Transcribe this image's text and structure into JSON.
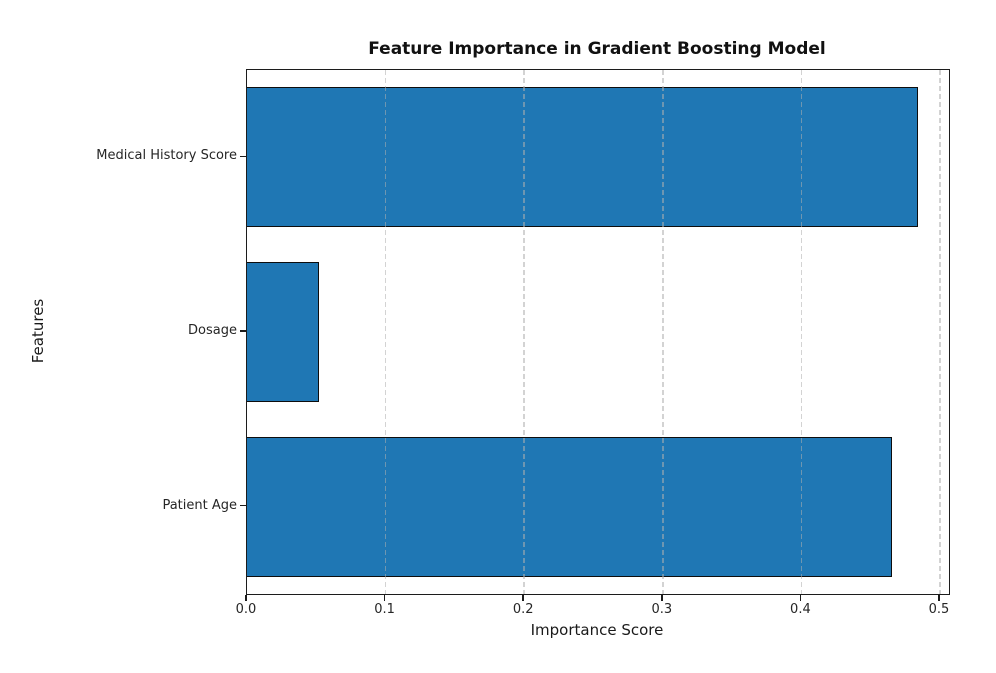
{
  "chart_data": {
    "type": "bar",
    "orientation": "horizontal",
    "title": "Feature Importance in Gradient Boosting Model",
    "xlabel": "Importance Score",
    "ylabel": "Features",
    "categories": [
      "Medical History Score",
      "Dosage",
      "Patient Age"
    ],
    "values": [
      0.484,
      0.052,
      0.465
    ],
    "xlim": [
      0,
      0.5065
    ],
    "xticks": [
      0.0,
      0.1,
      0.2,
      0.3,
      0.4,
      0.5
    ],
    "xtick_labels": [
      "0.0",
      "0.1",
      "0.2",
      "0.3",
      "0.4",
      "0.5"
    ],
    "bar_color": "#1f77b4",
    "bar_edge_color": "#0d0d0d",
    "grid": true,
    "grid_style": "dashed",
    "grid_axis": "x",
    "legend": false
  }
}
